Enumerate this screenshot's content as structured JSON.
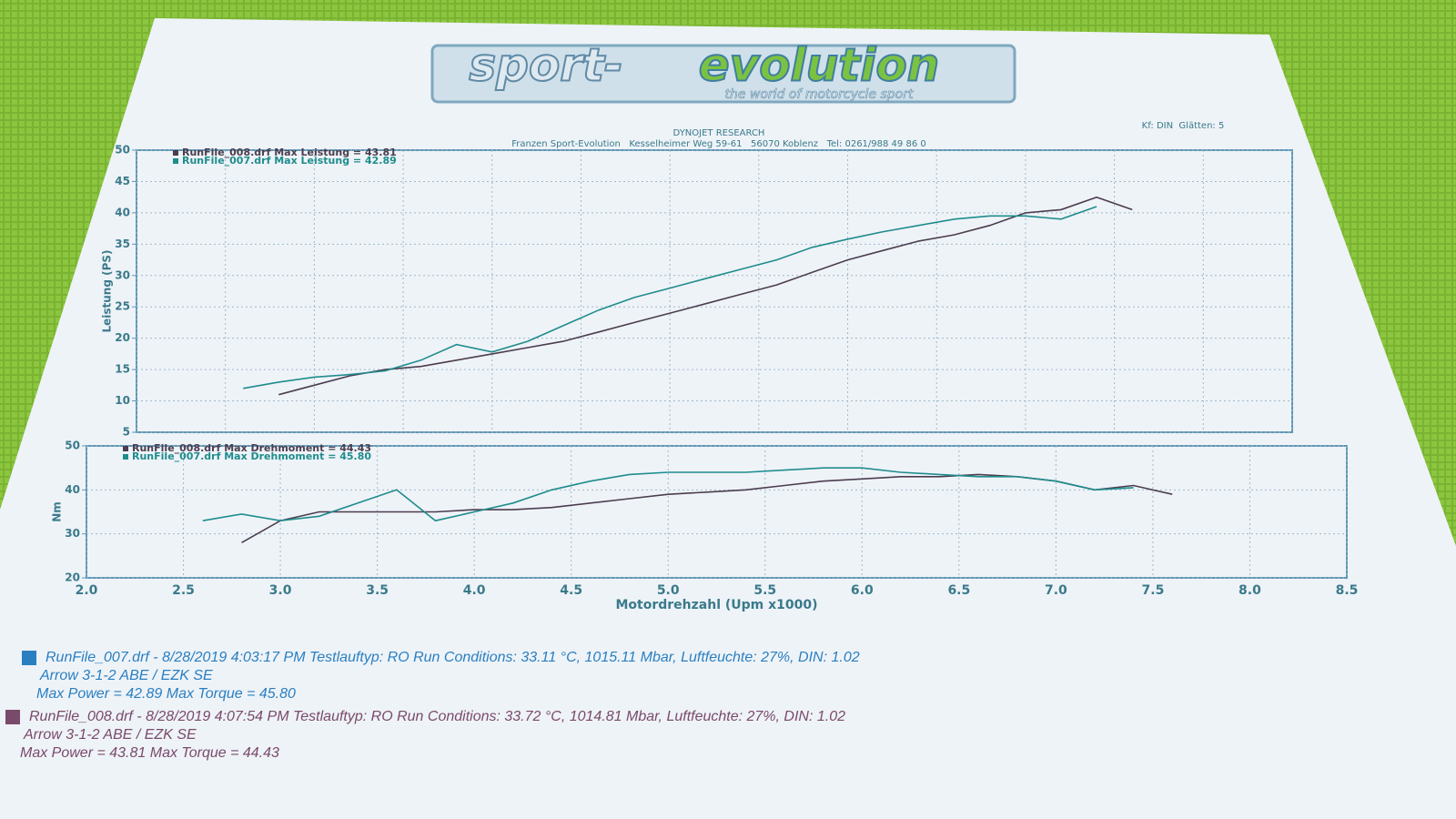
{
  "header": {
    "logo_left": "sport-",
    "logo_right": "evolution",
    "logo_tagline": "the world of motorcycle sport",
    "company": "DYNOJET RESEARCH",
    "address": "Franzen Sport-Evolution   Kesselheimer Weg 59-61   56070 Koblenz   Tel: 0261/988 49 86 0",
    "settings": "Kf: DIN  Glätten: 5"
  },
  "chart_data": [
    {
      "type": "line",
      "ylabel": "Leistung (PS)",
      "xlim": [
        2,
        8.5
      ],
      "ylim": [
        5,
        50
      ],
      "yticks": [
        5,
        10,
        15,
        20,
        25,
        30,
        35,
        40,
        45,
        50
      ],
      "grid": true,
      "x": [
        2.6,
        2.8,
        3.0,
        3.2,
        3.4,
        3.6,
        3.8,
        4.0,
        4.2,
        4.4,
        4.6,
        4.8,
        5.0,
        5.2,
        5.4,
        5.6,
        5.8,
        6.0,
        6.2,
        6.4,
        6.6,
        6.8,
        7.0,
        7.2,
        7.4,
        7.6
      ],
      "series": [
        {
          "name": "RunFile_008.drf Max Leistung = 43.81",
          "color": "#4b3d4e",
          "values": [
            null,
            11,
            12.5,
            14,
            15,
            15.5,
            16.5,
            17.5,
            18.5,
            19.5,
            21,
            22.5,
            24,
            25.5,
            27,
            28.5,
            30.5,
            32.5,
            34,
            35.5,
            36.5,
            38,
            40,
            40.5,
            42.5,
            40.5
          ]
        },
        {
          "name": "RunFile_007.drf Max Leistung = 42.89",
          "color": "#1f8c8c",
          "values": [
            12,
            13,
            13.8,
            14.2,
            14.8,
            16.5,
            19,
            17.8,
            19.5,
            22,
            24.5,
            26.5,
            28,
            29.5,
            31,
            32.5,
            34.5,
            35.8,
            37,
            38,
            39,
            39.5,
            39.5,
            39,
            41,
            null
          ]
        }
      ]
    },
    {
      "type": "line",
      "ylabel": "Nm",
      "xlabel": "Motordrehzahl (Upm x1000)",
      "xlim": [
        2,
        8.5
      ],
      "ylim": [
        20,
        50
      ],
      "yticks": [
        20,
        30,
        40,
        50
      ],
      "grid": true,
      "xticks": [
        {
          "value": 2,
          "label": "2.0"
        },
        2.5,
        {
          "value": 3,
          "label": "3.0"
        },
        3.5,
        {
          "value": 4,
          "label": "4.0"
        },
        4.5,
        {
          "value": 5,
          "label": "5.0"
        },
        5.5,
        {
          "value": 6,
          "label": "6.0"
        },
        6.5,
        {
          "value": 7,
          "label": "7.0"
        },
        7.5,
        {
          "value": 8,
          "label": "8.0"
        },
        8.5
      ],
      "x": [
        2.6,
        2.8,
        3.0,
        3.2,
        3.4,
        3.6,
        3.8,
        4.0,
        4.2,
        4.4,
        4.6,
        4.8,
        5.0,
        5.2,
        5.4,
        5.6,
        5.8,
        6.0,
        6.2,
        6.4,
        6.6,
        6.8,
        7.0,
        7.2,
        7.4,
        7.6
      ],
      "series": [
        {
          "name": "RunFile_008.drf Max Drehmoment = 44.43",
          "color": "#4b3d4e",
          "values": [
            null,
            28,
            33,
            35,
            35,
            35,
            35,
            35.5,
            35.5,
            36,
            37,
            38,
            39,
            39.5,
            40,
            41,
            42,
            42.5,
            43,
            43,
            43.5,
            43,
            42,
            40,
            41,
            39
          ]
        },
        {
          "name": "RunFile_007.drf Max Drehmoment = 45.80",
          "color": "#1f8c8c",
          "values": [
            33,
            34.5,
            33,
            34,
            37,
            40,
            33,
            35,
            37,
            40,
            42,
            43.5,
            44,
            44,
            44,
            44.5,
            45,
            45,
            44,
            43.5,
            43,
            43,
            42,
            40,
            40.5,
            null
          ]
        }
      ]
    }
  ],
  "runs": [
    {
      "color": "#2a7fc0",
      "line1": "RunFile_007.drf - 8/28/2019 4:03:17 PM  Testlauftyp: RO  Run Conditions: 33.11 °C, 1015.11 Mbar,  Luftfeuchte: 27%, DIN: 1.02",
      "line2": "Arrow 3-1-2 ABE / EZK SE",
      "line3": "Max Power = 42.89  Max Torque = 45.80"
    },
    {
      "color": "#7a4a6a",
      "line1": "RunFile_008.drf - 8/28/2019 4:07:54 PM  Testlauftyp: RO  Run Conditions: 33.72 °C, 1014.81 Mbar,  Luftfeuchte: 27%, DIN: 1.02",
      "line2": "Arrow 3-1-2 ABE / EZK SE",
      "line3": "Max Power = 43.81  Max Torque = 44.43"
    }
  ]
}
